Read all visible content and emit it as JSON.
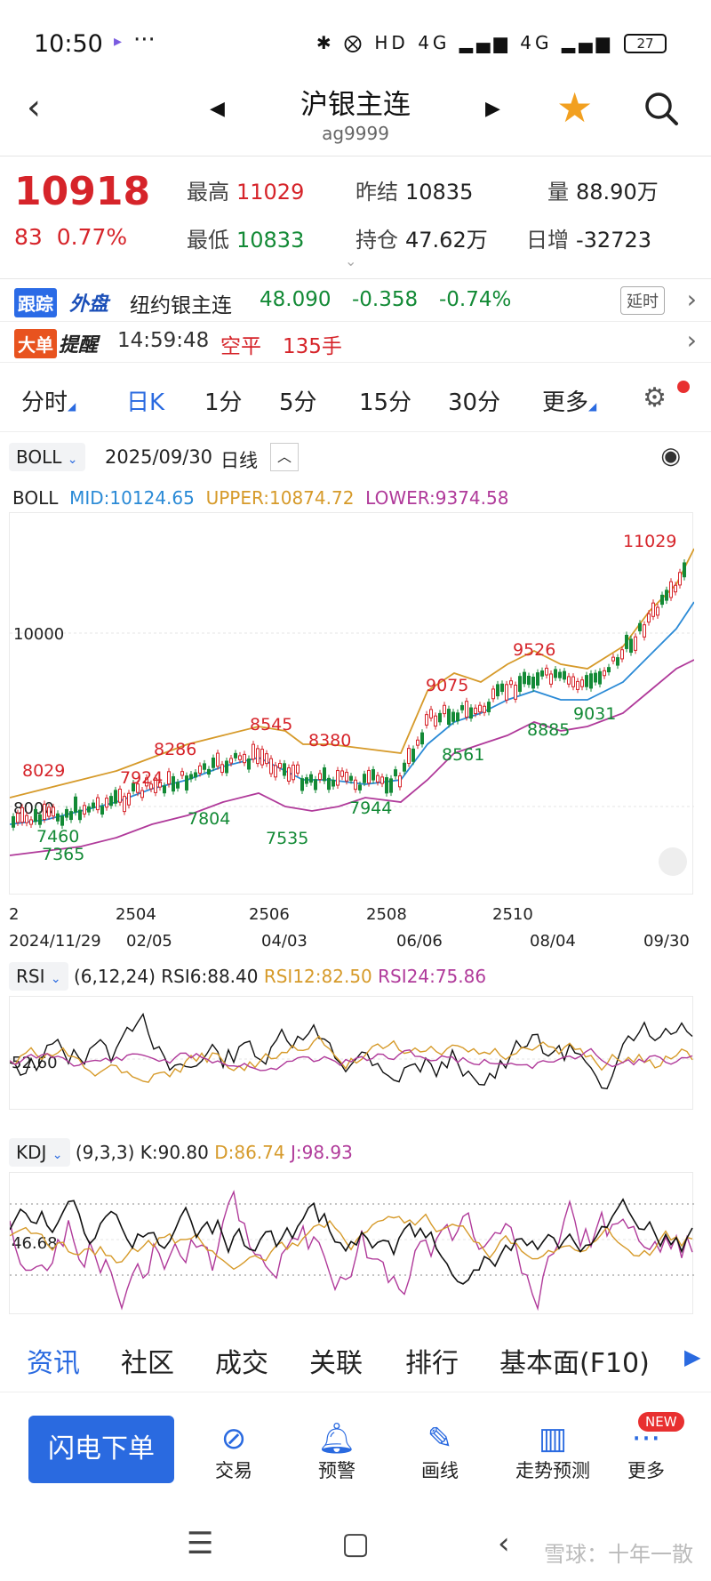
{
  "status": {
    "time": "10:50",
    "icons": "✱ ⨂ HD 4G ▂▄▆ 4G ▂▄▆",
    "battery": "27"
  },
  "header": {
    "title": "沪银主连",
    "code": "ag9999"
  },
  "quote": {
    "price": "10918",
    "change": "83",
    "change_pct": "0.77%",
    "high_label": "最高",
    "high": "11029",
    "low_label": "最低",
    "low": "10833",
    "prev_label": "昨结",
    "prev": "10835",
    "oi_label": "持仓",
    "oi": "47.62万",
    "vol_label": "量",
    "vol": "88.90万",
    "day_inc_label": "日增",
    "day_inc": "-32723"
  },
  "foreign": {
    "badge1": "跟踪",
    "badge2": "外盘",
    "name": "纽约银主连",
    "price": "48.090",
    "chg": "-0.358",
    "pct": "-0.74%",
    "delay": "延时"
  },
  "alert": {
    "badge1": "大单",
    "badge2": "提醒",
    "time": "14:59:48",
    "action": "空平",
    "qty": "135手"
  },
  "tabs": [
    {
      "label": "分时"
    },
    {
      "label": "日K"
    },
    {
      "label": "1分"
    },
    {
      "label": "5分"
    },
    {
      "label": "15分"
    },
    {
      "label": "30分"
    },
    {
      "label": "更多"
    }
  ],
  "indicator_bar": {
    "selector": "BOLL",
    "date": "2025/09/30",
    "period": "日线"
  },
  "boll": {
    "name": "BOLL",
    "mid": "MID:10124.65",
    "upper": "UPPER:10874.72",
    "lower": "LOWER:9374.58"
  },
  "chart_labels": {
    "y10000": "10000",
    "y8000": "8000",
    "peaks": [
      "11029",
      "9526",
      "9075",
      "8545",
      "8380",
      "8286",
      "8029",
      "7924"
    ],
    "troughs": [
      "9031",
      "8885",
      "8561",
      "7944",
      "7804",
      "7535",
      "7460",
      "7365"
    ],
    "contracts": [
      "2",
      "2504",
      "2506",
      "2508",
      "2510"
    ],
    "dates": [
      "2024/11/29",
      "02/05",
      "04/03",
      "06/06",
      "08/04",
      "09/30"
    ]
  },
  "rsi": {
    "selector": "RSI",
    "params": "(6,12,24)",
    "rsi6": "RSI6:88.40",
    "rsi12": "RSI12:82.50",
    "rsi24": "RSI24:75.86",
    "level": "52.60"
  },
  "kdj": {
    "selector": "KDJ",
    "params": "(9,3,3)",
    "k": "K:90.80",
    "d": "D:86.74",
    "j": "J:98.93",
    "level": "46.68"
  },
  "bottom_tabs": [
    "资讯",
    "社区",
    "成交",
    "关联",
    "排行",
    "基本面(F10)"
  ],
  "actions": {
    "flash": "闪电下单",
    "items": [
      "交易",
      "预警",
      "画线",
      "走势预测",
      "更多"
    ],
    "new": "NEW"
  },
  "watermark": "雪球：十年一散",
  "colors": {
    "up": "#d6242a",
    "down": "#138a36",
    "mid": "#2a8ad6",
    "upper": "#d69a2a",
    "lower": "#b03a9a",
    "accent": "#2a6ae0"
  }
}
